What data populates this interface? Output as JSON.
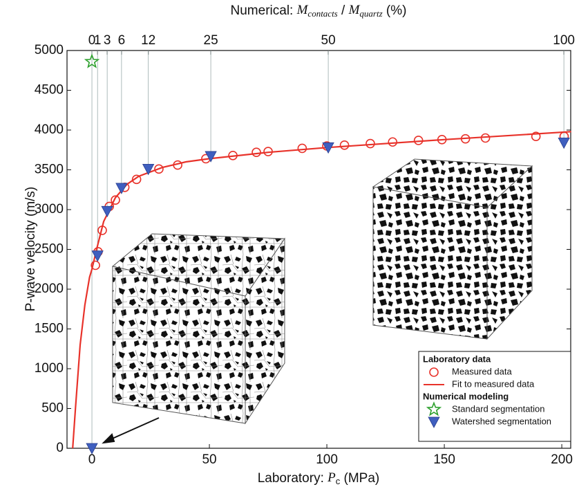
{
  "chart_data": {
    "type": "scatter",
    "ylabel": "P-wave velocity (m/s)",
    "xlabel": [
      "Laboratory: ",
      "P",
      "c",
      " (MPa)"
    ],
    "x2label": [
      "Numerical: ",
      "M",
      "contacts",
      " / ",
      "M",
      "quartz",
      " (%)"
    ],
    "xlim": [
      -10.6,
      203.8
    ],
    "ylim": [
      0,
      5000
    ],
    "xticks": [
      0,
      50,
      100,
      150,
      200
    ],
    "yticks": [
      0,
      500,
      1000,
      1500,
      2000,
      2500,
      3000,
      3500,
      4000,
      4500,
      5000
    ],
    "x2ticks": [
      0,
      1,
      3,
      6,
      12,
      25,
      50,
      100
    ],
    "x2tick_positions": [
      0,
      2.4,
      6.5,
      12.6,
      24,
      50.6,
      100.6,
      200.9
    ],
    "legend_groups": [
      "Laboratory data",
      "Numerical modeling"
    ],
    "legend": "lower right",
    "series": [
      {
        "name": "Measured data",
        "type": "scatter",
        "marker": "circle",
        "color": "#e8322a",
        "x": [
          1.5,
          2.6,
          4.4,
          7.4,
          10,
          14,
          19,
          28.5,
          36.5,
          48.5,
          60,
          70,
          75,
          89.5,
          100,
          107.5,
          118.5,
          128,
          139,
          149,
          159,
          167.5,
          189,
          201
        ],
        "values": [
          2300,
          2470,
          2740,
          3040,
          3120,
          3280,
          3380,
          3510,
          3560,
          3640,
          3680,
          3720,
          3730,
          3770,
          3800,
          3810,
          3830,
          3850,
          3870,
          3880,
          3890,
          3900,
          3920,
          3920
        ]
      },
      {
        "name": "Fit to measured data",
        "type": "line",
        "color": "#e8322a",
        "x": [
          -8.2,
          -7,
          -5,
          -3,
          -1,
          0,
          2,
          5,
          10,
          15,
          20,
          30,
          40,
          50,
          75,
          100,
          150,
          204
        ],
        "values": [
          0,
          500,
          1300,
          1800,
          2150,
          2250,
          2500,
          2850,
          3150,
          3320,
          3420,
          3530,
          3600,
          3640,
          3720,
          3780,
          3880,
          3980
        ]
      },
      {
        "name": "Standard segmentation",
        "type": "scatter",
        "marker": "star",
        "color": "#2ca02c",
        "x": [
          0
        ],
        "values": [
          4860
        ]
      },
      {
        "name": "Watershed segmentation",
        "type": "scatter",
        "marker": "triangle",
        "color": "#3f5fbf",
        "x": [
          0,
          2.4,
          6.5,
          12.6,
          24,
          50.6,
          100.6,
          200.9
        ],
        "values": [
          0,
          2420,
          2980,
          3270,
          3510,
          3670,
          3780,
          3840
        ]
      }
    ]
  }
}
